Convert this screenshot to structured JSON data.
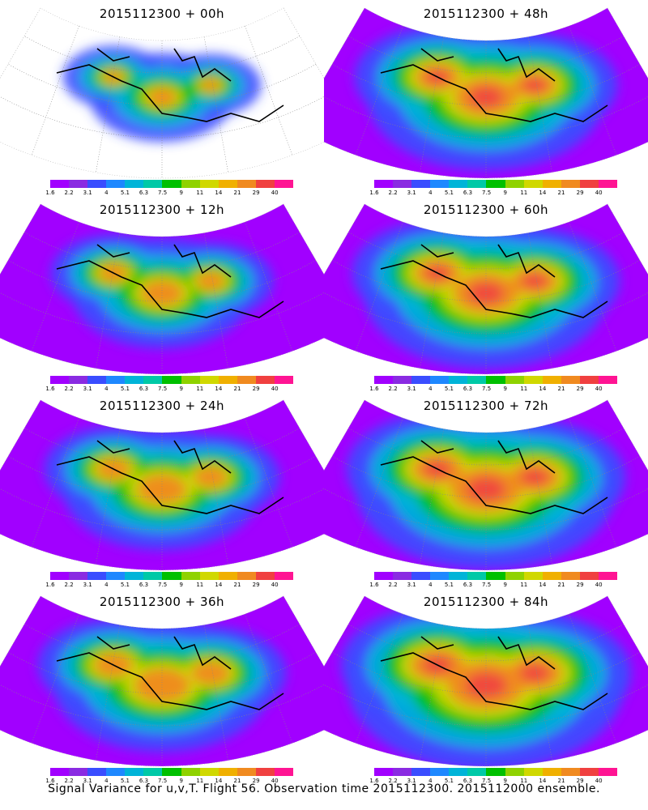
{
  "colorbar": {
    "colors": [
      "#a100ff",
      "#8a2be2",
      "#3a4dff",
      "#1e88ff",
      "#00b4d8",
      "#00c9a7",
      "#00c000",
      "#8fd200",
      "#d0d800",
      "#f0b000",
      "#f08a20",
      "#f04040",
      "#ff1493"
    ],
    "labels": [
      "1.6",
      "2.2",
      "3.1",
      "4",
      "5.1",
      "6.3",
      "7.5",
      "9",
      "11",
      "14",
      "21",
      "29",
      "40"
    ]
  },
  "panels": [
    {
      "title": "2015112300 + 00h"
    },
    {
      "title": "2015112300 + 48h"
    },
    {
      "title": "2015112300 + 12h"
    },
    {
      "title": "2015112300 + 60h"
    },
    {
      "title": "2015112300 + 24h"
    },
    {
      "title": "2015112300 + 72h"
    },
    {
      "title": "2015112300 + 36h"
    },
    {
      "title": "2015112300 + 84h"
    }
  ],
  "caption": "Signal Variance for u,v,T. Flight 56. Observation time 2015112300. 2015112000 ensemble."
}
